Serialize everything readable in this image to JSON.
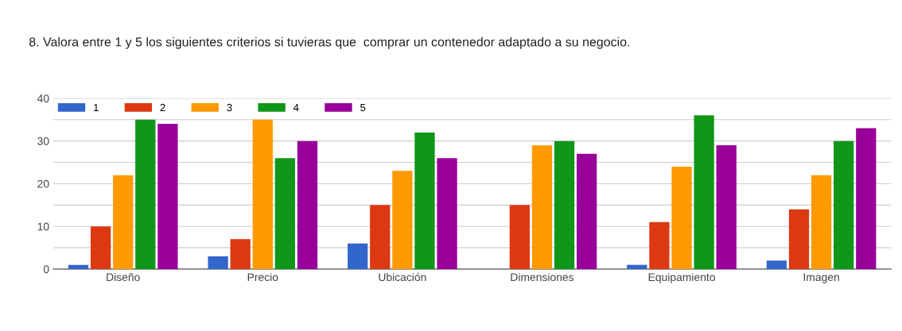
{
  "chart_data": {
    "type": "bar",
    "title": "8. Valora entre 1 y 5 los siguientes criterios si tuvieras que  comprar un contenedor adaptado a su negocio.",
    "categories": [
      "Diseño",
      "Precio",
      "Ubicación",
      "Dimensiones",
      "Equipamiento",
      "Imagen"
    ],
    "series": [
      {
        "name": "1",
        "color": "#3366cc",
        "values": [
          1,
          3,
          6,
          0,
          1,
          2
        ]
      },
      {
        "name": "2",
        "color": "#dc3912",
        "values": [
          10,
          7,
          15,
          15,
          11,
          14
        ]
      },
      {
        "name": "3",
        "color": "#ff9900",
        "values": [
          22,
          35,
          23,
          29,
          24,
          22
        ]
      },
      {
        "name": "4",
        "color": "#109618",
        "values": [
          35,
          26,
          32,
          30,
          36,
          30
        ]
      },
      {
        "name": "5",
        "color": "#990099",
        "values": [
          34,
          30,
          26,
          27,
          29,
          33
        ]
      }
    ],
    "ylim": [
      0,
      40
    ],
    "yticks": [
      0,
      {
        "value": 5,
        "label": null
      },
      10,
      {
        "value": 15,
        "label": null
      },
      20,
      {
        "value": 25,
        "label": null
      },
      30,
      {
        "value": 35,
        "label": null
      },
      40
    ],
    "grid": "y",
    "legend": "top left"
  }
}
